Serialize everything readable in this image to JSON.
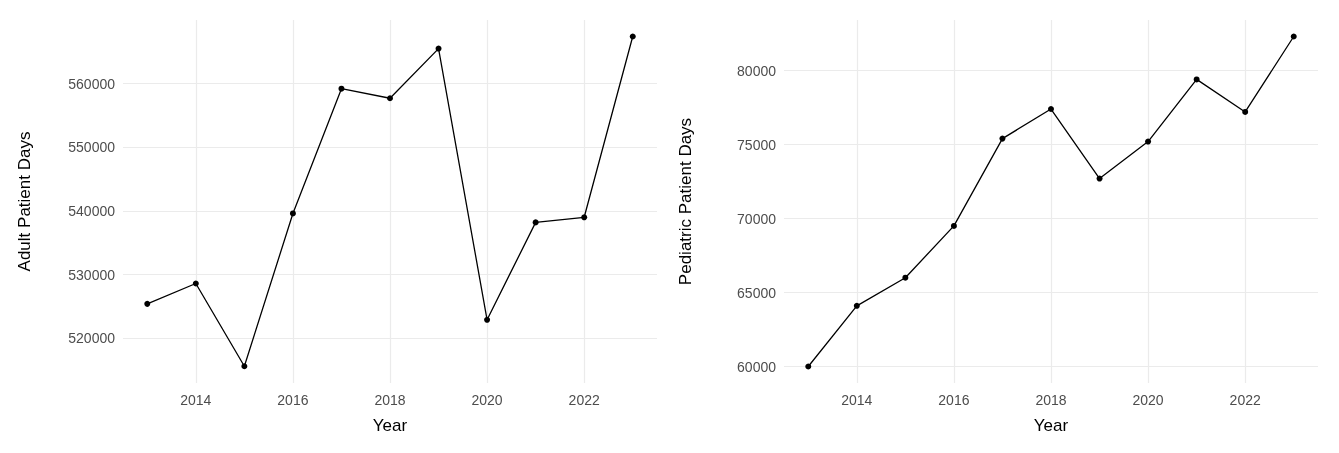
{
  "chart_data": [
    {
      "type": "line",
      "xlabel": "Year",
      "ylabel": "Adult Patient Days",
      "x": [
        2013,
        2014,
        2015,
        2016,
        2017,
        2018,
        2019,
        2020,
        2021,
        2022,
        2023
      ],
      "series": [
        {
          "color": "#000000",
          "values": [
            525400,
            528600,
            515600,
            539600,
            559200,
            557700,
            565500,
            522900,
            538200,
            539000,
            567400
          ]
        }
      ],
      "xlim": [
        2012.5,
        2023.5
      ],
      "xticks": [
        2014,
        2016,
        2018,
        2020,
        2022
      ],
      "ylim": [
        512970,
        569990
      ],
      "yticks": [
        520000,
        530000,
        540000,
        550000,
        560000
      ],
      "grid": true,
      "marker": "circle",
      "line_style": "solid"
    },
    {
      "type": "line",
      "xlabel": "Year",
      "ylabel": "Pediatric Patient Days",
      "x": [
        2013,
        2014,
        2015,
        2016,
        2017,
        2018,
        2019,
        2020,
        2021,
        2022,
        2023
      ],
      "series": [
        {
          "color": "#000000",
          "values": [
            60000,
            64100,
            66000,
            69500,
            75400,
            77400,
            72700,
            75200,
            79400,
            77200,
            82300
          ]
        }
      ],
      "xlim": [
        2012.5,
        2023.5
      ],
      "xticks": [
        2014,
        2016,
        2018,
        2020,
        2022
      ],
      "ylim": [
        58885,
        83415
      ],
      "yticks": [
        60000,
        65000,
        70000,
        75000,
        80000
      ],
      "grid": true,
      "marker": "circle",
      "line_style": "solid"
    }
  ]
}
